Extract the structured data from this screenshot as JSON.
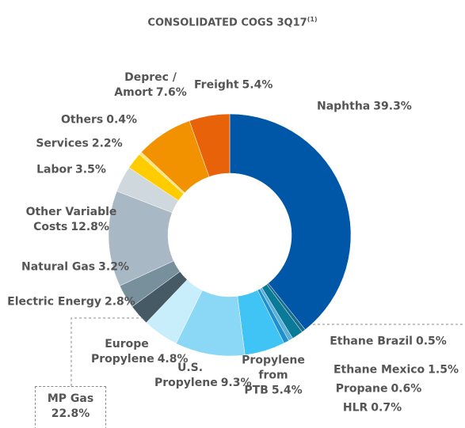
{
  "chart_data": {
    "type": "donut",
    "title": "CONSOLIDATED COGS 3Q17",
    "title_note": "(1)",
    "categories": [
      "Naphtha",
      "Ethane Brazil",
      "Ethane Mexico",
      "Propane",
      "HLR",
      "Propylene from PTB",
      "U.S. Propylene",
      "Europe Propylene",
      "Electric Energy",
      "Natural Gas",
      "Other Variable Costs",
      "Labor",
      "Services",
      "Others",
      "Deprec / Amort",
      "Freight"
    ],
    "values": [
      39.3,
      0.5,
      1.5,
      0.6,
      0.7,
      5.4,
      9.3,
      4.8,
      2.8,
      3.2,
      12.8,
      3.5,
      2.2,
      0.4,
      7.6,
      5.4
    ],
    "value_labels": [
      "39.3%",
      "0.5%",
      "1.5%",
      "0.6%",
      "0.7%",
      "5.4%",
      "9.3%",
      "4.8%",
      "2.8%",
      "3.2%",
      "12.8%",
      "3.5%",
      "2.2%",
      "0.4%",
      "7.6%",
      "5.4%"
    ],
    "colors": [
      "#0057a8",
      "#1a6e8c",
      "#0b7a99",
      "#5bb0d8",
      "#1e90d0",
      "#40c4f5",
      "#8ad8f5",
      "#c8eefb",
      "#455a64",
      "#78909c",
      "#a8b8c4",
      "#cfd8dc",
      "#ffcc00",
      "#ffe57f",
      "#f39200",
      "#e8620a"
    ],
    "annotation": {
      "label": "MP Gas",
      "value": 22.8,
      "value_label": "22.8%"
    }
  }
}
